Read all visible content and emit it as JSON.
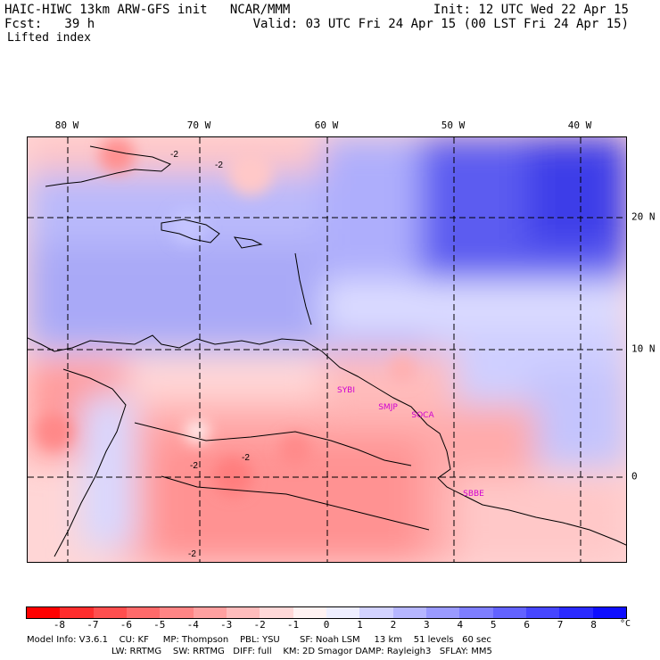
{
  "header": {
    "title": "HAIC-HIWC 13km ARW-GFS init   NCAR/MMM",
    "forecast": "Fcst:   39 h",
    "init": "Init: 12 UTC Wed 22 Apr 15",
    "valid": "Valid: 03 UTC Fri 24 Apr 15 (00 LST Fri 24 Apr 15)",
    "field": "Lifted index"
  },
  "longitude_labels": [
    "80 W",
    "70 W",
    "60 W",
    "50 W",
    "40 W"
  ],
  "latitude_labels": [
    "20 N",
    "10 N",
    "0"
  ],
  "contour_labels": [
    "-2",
    "-2",
    "-2",
    "-2",
    "-2"
  ],
  "stations": [
    "SYBI",
    "SMJP",
    "SOCA",
    "SBBE"
  ],
  "colorbar": {
    "ticks": [
      "-8",
      "-7",
      "-6",
      "-5",
      "-4",
      "-3",
      "-2",
      "-1",
      "0",
      "1",
      "2",
      "3",
      "4",
      "5",
      "6",
      "7",
      "8"
    ],
    "unit": "°C",
    "colors": [
      "#ff0000",
      "#ff2d2d",
      "#ff4e4e",
      "#ff6a6a",
      "#ff8585",
      "#ffa0a0",
      "#ffbcbc",
      "#ffd8d8",
      "#fff2f2",
      "#eeeeff",
      "#d2d2ff",
      "#b6b6ff",
      "#9a9aff",
      "#7e7eff",
      "#6262ff",
      "#4646ff",
      "#2a2aff",
      "#0e0eff"
    ]
  },
  "footer": {
    "line1": "Model Info: V3.6.1    CU: KF     MP: Thompson    PBL: YSU       SF: Noah LSM     13 km    51 levels   60 sec",
    "line2": "LW: RRTMG    SW: RRTMG   DIFF: full    KM: 2D Smagor DAMP: Rayleigh3   SFLAY: MM5"
  }
}
